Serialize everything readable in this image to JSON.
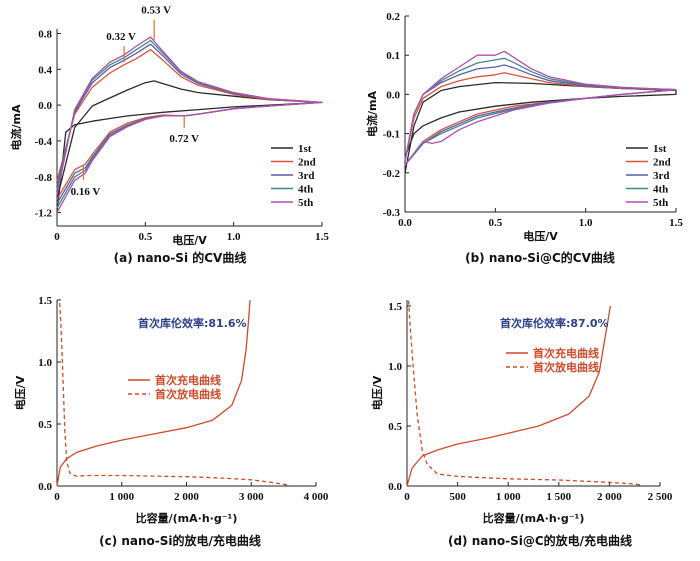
{
  "colors": {
    "cycle1": "#2a2a2a",
    "cycle2": "#d9533c",
    "cycle3": "#5a5ea6",
    "cycle4": "#3f8a86",
    "cycle5": "#b24fb0",
    "annot_arrow": "#e07020",
    "charge_discharge": "#d04a2a",
    "efficiency_text": "#2c3f8c"
  },
  "chart_data": [
    {
      "id": "a",
      "type": "line",
      "caption": "(a) nano-Si 的CV曲线",
      "xlabel": "电压/V",
      "ylabel": "电流/mA",
      "xlim": [
        0,
        1.5
      ],
      "ylim": [
        -1.35,
        0.85
      ],
      "xticks": [
        0,
        0.5,
        1.0,
        1.5
      ],
      "xtick_labels": [
        "0",
        "0.5",
        "1.0",
        "1.5"
      ],
      "yticks": [
        -1.2,
        -0.8,
        -0.4,
        0.0,
        0.4,
        0.8
      ],
      "ytick_labels": [
        "-1.2",
        "-0.8",
        "-0.4",
        "0.0",
        "0.4",
        "0.8"
      ],
      "legend": [
        "1st",
        "2nd",
        "3rd",
        "4th",
        "5th"
      ],
      "legend_position": "bottom-right",
      "annotations": [
        {
          "text": "0.32 V",
          "x": 0.38,
          "y": 0.48
        },
        {
          "text": "0.53 V",
          "x": 0.55,
          "y": 0.73
        },
        {
          "text": "0.72 V",
          "x": 0.72,
          "y": -0.12
        },
        {
          "text": "0.16 V",
          "x": 0.15,
          "y": -0.68
        }
      ],
      "series": [
        {
          "name": "1st",
          "x": [
            0.0,
            0.1,
            0.2,
            0.3,
            0.4,
            0.5,
            0.55,
            0.6,
            0.7,
            0.8,
            1.0,
            1.2,
            1.5,
            1.5,
            1.2,
            1.0,
            0.8,
            0.6,
            0.5,
            0.4,
            0.3,
            0.2,
            0.1,
            0.05,
            0.0
          ],
          "y": [
            -1.05,
            -0.25,
            -0.01,
            0.08,
            0.17,
            0.25,
            0.27,
            0.24,
            0.18,
            0.14,
            0.1,
            0.06,
            0.03,
            0.03,
            0.0,
            -0.02,
            -0.05,
            -0.08,
            -0.1,
            -0.12,
            -0.15,
            -0.18,
            -0.22,
            -0.3,
            -1.2
          ]
        },
        {
          "name": "2nd",
          "x": [
            0.0,
            0.1,
            0.2,
            0.3,
            0.38,
            0.45,
            0.53,
            0.6,
            0.7,
            0.8,
            1.0,
            1.2,
            1.5,
            1.5,
            1.2,
            1.0,
            0.8,
            0.72,
            0.6,
            0.5,
            0.4,
            0.3,
            0.2,
            0.16,
            0.1,
            0.0
          ],
          "y": [
            -0.85,
            -0.1,
            0.2,
            0.36,
            0.45,
            0.52,
            0.62,
            0.5,
            0.32,
            0.22,
            0.12,
            0.06,
            0.03,
            0.03,
            -0.01,
            -0.04,
            -0.1,
            -0.12,
            -0.11,
            -0.14,
            -0.2,
            -0.3,
            -0.55,
            -0.66,
            -0.72,
            -1.05
          ]
        },
        {
          "name": "3rd",
          "x": [
            0.0,
            0.1,
            0.2,
            0.3,
            0.38,
            0.45,
            0.53,
            0.6,
            0.7,
            0.8,
            1.0,
            1.2,
            1.5,
            1.5,
            1.2,
            1.0,
            0.8,
            0.72,
            0.6,
            0.5,
            0.4,
            0.3,
            0.2,
            0.16,
            0.1,
            0.0
          ],
          "y": [
            -0.9,
            -0.08,
            0.25,
            0.42,
            0.5,
            0.58,
            0.68,
            0.55,
            0.35,
            0.24,
            0.13,
            0.07,
            0.03,
            0.03,
            -0.01,
            -0.04,
            -0.1,
            -0.12,
            -0.12,
            -0.15,
            -0.22,
            -0.32,
            -0.58,
            -0.7,
            -0.76,
            -1.1
          ]
        },
        {
          "name": "4th",
          "x": [
            0.0,
            0.1,
            0.2,
            0.3,
            0.38,
            0.45,
            0.53,
            0.6,
            0.7,
            0.8,
            1.0,
            1.2,
            1.5,
            1.5,
            1.2,
            1.0,
            0.8,
            0.72,
            0.6,
            0.5,
            0.4,
            0.3,
            0.2,
            0.16,
            0.1,
            0.0
          ],
          "y": [
            -0.95,
            -0.06,
            0.28,
            0.45,
            0.53,
            0.62,
            0.72,
            0.58,
            0.37,
            0.25,
            0.14,
            0.07,
            0.03,
            0.03,
            -0.01,
            -0.04,
            -0.1,
            -0.12,
            -0.12,
            -0.16,
            -0.23,
            -0.34,
            -0.6,
            -0.73,
            -0.8,
            -1.15
          ]
        },
        {
          "name": "5th",
          "x": [
            0.0,
            0.1,
            0.2,
            0.3,
            0.38,
            0.45,
            0.53,
            0.6,
            0.7,
            0.8,
            1.0,
            1.2,
            1.5,
            1.5,
            1.2,
            1.0,
            0.8,
            0.72,
            0.6,
            0.5,
            0.4,
            0.3,
            0.2,
            0.16,
            0.1,
            0.0
          ],
          "y": [
            -1.0,
            -0.05,
            0.3,
            0.48,
            0.56,
            0.66,
            0.76,
            0.6,
            0.38,
            0.26,
            0.14,
            0.07,
            0.03,
            0.03,
            -0.01,
            -0.04,
            -0.1,
            -0.12,
            -0.12,
            -0.16,
            -0.24,
            -0.35,
            -0.62,
            -0.76,
            -0.84,
            -1.2
          ]
        }
      ]
    },
    {
      "id": "b",
      "type": "line",
      "caption": "(b) nano-Si@C的CV曲线",
      "xlabel": "电压/V",
      "ylabel": "电流/mA",
      "xlim": [
        0,
        1.5
      ],
      "ylim": [
        -0.3,
        0.2
      ],
      "xticks": [
        0,
        0.5,
        1.0,
        1.5
      ],
      "xtick_labels": [
        "0.0",
        "0.5",
        "1.0",
        "1.5"
      ],
      "yticks": [
        -0.3,
        -0.2,
        -0.1,
        0.0,
        0.1,
        0.2
      ],
      "ytick_labels": [
        "-0.3",
        "-0.2",
        "-0.1",
        "0.0",
        "0.1",
        "0.2"
      ],
      "legend": [
        "1st",
        "2nd",
        "3rd",
        "4th",
        "5th"
      ],
      "legend_position": "bottom-right",
      "series": [
        {
          "name": "1st",
          "x": [
            0.0,
            0.05,
            0.1,
            0.2,
            0.3,
            0.5,
            0.7,
            1.0,
            1.2,
            1.5,
            1.5,
            1.2,
            1.0,
            0.7,
            0.5,
            0.3,
            0.2,
            0.1,
            0.05,
            0.0
          ],
          "y": [
            -0.2,
            -0.08,
            -0.02,
            0.01,
            0.02,
            0.03,
            0.028,
            0.02,
            0.015,
            0.01,
            0.0,
            -0.005,
            -0.01,
            -0.02,
            -0.03,
            -0.045,
            -0.06,
            -0.08,
            -0.1,
            -0.16
          ]
        },
        {
          "name": "2nd",
          "x": [
            0.0,
            0.05,
            0.1,
            0.2,
            0.3,
            0.4,
            0.5,
            0.55,
            0.6,
            0.7,
            0.8,
            1.0,
            1.2,
            1.5,
            1.5,
            1.2,
            1.0,
            0.8,
            0.6,
            0.4,
            0.3,
            0.2,
            0.1,
            0.0
          ],
          "y": [
            -0.17,
            -0.06,
            -0.01,
            0.02,
            0.035,
            0.045,
            0.05,
            0.055,
            0.05,
            0.04,
            0.03,
            0.02,
            0.015,
            0.012,
            0.012,
            0.0,
            -0.01,
            -0.02,
            -0.03,
            -0.05,
            -0.07,
            -0.09,
            -0.12,
            -0.18
          ]
        },
        {
          "name": "3rd",
          "x": [
            0.0,
            0.05,
            0.1,
            0.2,
            0.3,
            0.4,
            0.5,
            0.55,
            0.6,
            0.7,
            0.8,
            1.0,
            1.2,
            1.5,
            1.5,
            1.2,
            1.0,
            0.8,
            0.6,
            0.4,
            0.3,
            0.2,
            0.1,
            0.0
          ],
          "y": [
            -0.17,
            -0.05,
            0.0,
            0.03,
            0.05,
            0.065,
            0.07,
            0.075,
            0.068,
            0.05,
            0.035,
            0.022,
            0.016,
            0.012,
            0.012,
            0.0,
            -0.01,
            -0.02,
            -0.035,
            -0.055,
            -0.075,
            -0.095,
            -0.125,
            -0.18
          ]
        },
        {
          "name": "4th",
          "x": [
            0.0,
            0.05,
            0.1,
            0.2,
            0.3,
            0.4,
            0.5,
            0.55,
            0.6,
            0.7,
            0.8,
            1.0,
            1.2,
            1.5,
            1.5,
            1.2,
            1.0,
            0.8,
            0.6,
            0.4,
            0.3,
            0.2,
            0.1,
            0.0
          ],
          "y": [
            -0.17,
            -0.05,
            0.0,
            0.035,
            0.06,
            0.08,
            0.088,
            0.092,
            0.082,
            0.058,
            0.04,
            0.024,
            0.017,
            0.012,
            0.012,
            0.0,
            -0.01,
            -0.022,
            -0.038,
            -0.06,
            -0.08,
            -0.1,
            -0.125,
            -0.18
          ]
        },
        {
          "name": "5th",
          "x": [
            0.0,
            0.05,
            0.1,
            0.2,
            0.3,
            0.4,
            0.45,
            0.5,
            0.55,
            0.6,
            0.7,
            0.8,
            1.0,
            1.2,
            1.5,
            1.5,
            1.2,
            1.0,
            0.8,
            0.6,
            0.4,
            0.3,
            0.2,
            0.15,
            0.1,
            0.0
          ],
          "y": [
            -0.17,
            -0.05,
            0.0,
            0.04,
            0.07,
            0.1,
            0.1,
            0.1,
            0.11,
            0.095,
            0.065,
            0.045,
            0.026,
            0.018,
            0.012,
            0.012,
            0.0,
            -0.01,
            -0.022,
            -0.04,
            -0.07,
            -0.09,
            -0.12,
            -0.125,
            -0.12,
            -0.18
          ]
        }
      ]
    },
    {
      "id": "c",
      "type": "line",
      "caption": "(c) nano-Si的放电/充电曲线",
      "xlabel": "比容量/(mA·h·g⁻¹)",
      "ylabel": "电压/V",
      "xlim": [
        0,
        4000
      ],
      "ylim": [
        0,
        1.5
      ],
      "xticks": [
        0,
        1000,
        2000,
        3000,
        4000
      ],
      "xtick_labels": [
        "0",
        "1 000",
        "2 000",
        "3 000",
        "4 000"
      ],
      "yticks": [
        0.0,
        0.5,
        1.0,
        1.5
      ],
      "ytick_labels": [
        "0.0",
        "0.5",
        "1.0",
        "1.5"
      ],
      "efficiency_label": "首次库伦效率:81.6%",
      "legend": [
        "首次充电曲线",
        "首次放电曲线"
      ],
      "legend_position": "center-left",
      "series": [
        {
          "name": "首次充电曲线",
          "style": "solid",
          "x": [
            0,
            50,
            150,
            300,
            600,
            1000,
            1500,
            2000,
            2400,
            2700,
            2850,
            2920,
            2960,
            2980
          ],
          "y": [
            0.0,
            0.15,
            0.22,
            0.27,
            0.32,
            0.37,
            0.42,
            0.47,
            0.53,
            0.65,
            0.85,
            1.1,
            1.35,
            1.5
          ]
        },
        {
          "name": "首次放电曲线",
          "style": "dashed",
          "x": [
            3550,
            3300,
            3000,
            2500,
            2000,
            1500,
            1000,
            500,
            300,
            200,
            150,
            120,
            100,
            80,
            60,
            40
          ],
          "y": [
            0.01,
            0.03,
            0.05,
            0.065,
            0.075,
            0.08,
            0.085,
            0.085,
            0.08,
            0.1,
            0.2,
            0.45,
            0.75,
            1.05,
            1.3,
            1.5
          ]
        }
      ]
    },
    {
      "id": "d",
      "type": "line",
      "caption": "(d) nano-Si@C的放电/充电曲线",
      "xlabel": "比容量/(mA·h·g⁻¹)",
      "ylabel": "电压/V",
      "xlim": [
        0,
        2500
      ],
      "ylim": [
        0,
        1.55
      ],
      "xticks": [
        0,
        500,
        1000,
        1500,
        2000,
        2500
      ],
      "xtick_labels": [
        "0",
        "500",
        "1 000",
        "1 500",
        "2 000",
        "2 500"
      ],
      "yticks": [
        0.0,
        0.5,
        1.0,
        1.5
      ],
      "ytick_labels": [
        "0.0",
        "0.5",
        "1.0",
        "1.5"
      ],
      "efficiency_label": "首次库伦效率:87.0%",
      "legend": [
        "首次充电曲线",
        "首次放电曲线"
      ],
      "legend_position": "center-right",
      "series": [
        {
          "name": "首次充电曲线",
          "style": "solid",
          "x": [
            0,
            50,
            150,
            300,
            500,
            800,
            1000,
            1300,
            1600,
            1800,
            1900,
            1950,
            1990,
            2010
          ],
          "y": [
            0.0,
            0.15,
            0.25,
            0.3,
            0.35,
            0.4,
            0.44,
            0.5,
            0.6,
            0.75,
            0.95,
            1.2,
            1.4,
            1.5
          ]
        },
        {
          "name": "首次放电曲线",
          "style": "dashed",
          "x": [
            2300,
            2200,
            2000,
            1500,
            1000,
            500,
            300,
            200,
            150,
            100,
            60,
            30,
            15
          ],
          "y": [
            0.01,
            0.02,
            0.03,
            0.05,
            0.06,
            0.08,
            0.1,
            0.18,
            0.3,
            0.6,
            1.0,
            1.35,
            1.55
          ]
        }
      ]
    }
  ]
}
